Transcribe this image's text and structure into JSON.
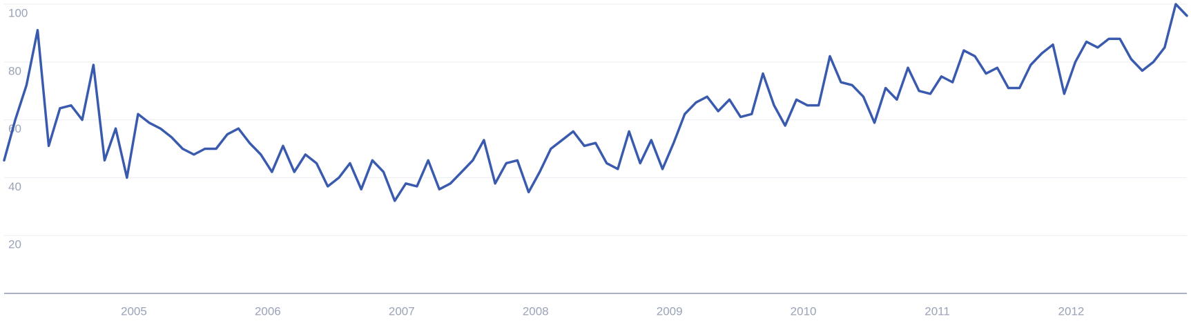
{
  "chart_data": {
    "type": "line",
    "color": "#3a5bad",
    "grid": true,
    "x": [
      2004,
      2004.083,
      2004.167,
      2004.25,
      2004.333,
      2004.417,
      2004.5,
      2004.583,
      2004.667,
      2004.75,
      2004.833,
      2004.917,
      2005,
      2005.083,
      2005.167,
      2005.25,
      2005.333,
      2005.417,
      2005.5,
      2005.583,
      2005.667,
      2005.75,
      2005.833,
      2005.917,
      2006,
      2006.083,
      2006.167,
      2006.25,
      2006.333,
      2006.417,
      2006.5,
      2006.583,
      2006.667,
      2006.75,
      2006.833,
      2006.917,
      2007,
      2007.083,
      2007.167,
      2007.25,
      2007.333,
      2007.417,
      2007.5,
      2007.583,
      2007.667,
      2007.75,
      2007.833,
      2007.917,
      2008,
      2008.083,
      2008.167,
      2008.25,
      2008.333,
      2008.417,
      2008.5,
      2008.583,
      2008.667,
      2008.75,
      2008.833,
      2008.917,
      2009,
      2009.083,
      2009.167,
      2009.25,
      2009.333,
      2009.417,
      2009.5,
      2009.583,
      2009.667,
      2009.75,
      2009.833,
      2009.917,
      2010,
      2010.083,
      2010.167,
      2010.25,
      2010.333,
      2010.417,
      2010.5,
      2010.583,
      2010.667,
      2010.75,
      2010.833,
      2010.917,
      2011,
      2011.083,
      2011.167,
      2011.25,
      2011.333,
      2011.417,
      2011.5,
      2011.583,
      2011.667,
      2011.75,
      2011.833,
      2011.917,
      2012,
      2012.083,
      2012.167,
      2012.25,
      2012.333,
      2012.417,
      2012.5,
      2012.583,
      2012.667,
      2012.75,
      2012.833
    ],
    "values": [
      46,
      60,
      72,
      91,
      51,
      64,
      65,
      60,
      79,
      46,
      57,
      40,
      62,
      59,
      57,
      54,
      50,
      48,
      50,
      50,
      55,
      57,
      52,
      48,
      42,
      51,
      42,
      48,
      45,
      37,
      40,
      45,
      36,
      46,
      42,
      32,
      38,
      37,
      46,
      36,
      38,
      42,
      46,
      53,
      38,
      45,
      46,
      35,
      42,
      50,
      53,
      56,
      51,
      52,
      45,
      43,
      56,
      45,
      53,
      43,
      52,
      62,
      66,
      68,
      63,
      67,
      61,
      62,
      76,
      65,
      58,
      67,
      65,
      65,
      82,
      73,
      72,
      68,
      59,
      71,
      67,
      78,
      70,
      69,
      75,
      73,
      84,
      82,
      76,
      78,
      71,
      71,
      79,
      83,
      86,
      69,
      80,
      87,
      85,
      88,
      88,
      81,
      77,
      80,
      85,
      100,
      96
    ],
    "xlim": [
      2004,
      2012.833
    ],
    "xticks": [
      2005,
      2006,
      2007,
      2008,
      2009,
      2010,
      2011,
      2012
    ],
    "ylim": [
      0,
      100
    ],
    "yticks": [
      20,
      40,
      60,
      80,
      100
    ]
  }
}
